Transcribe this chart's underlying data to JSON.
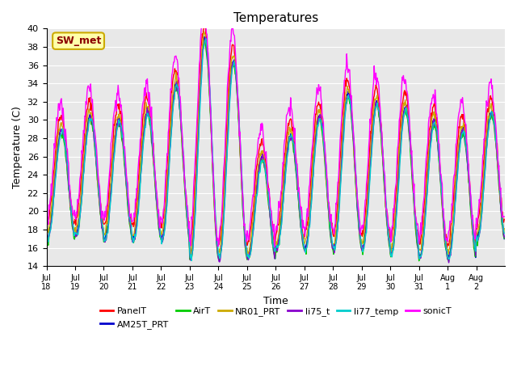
{
  "title": "Temperatures",
  "xlabel": "Time",
  "ylabel": "Temperature (C)",
  "annotation": "SW_met",
  "ylim": [
    14,
    40
  ],
  "yticks": [
    14,
    16,
    18,
    20,
    22,
    24,
    26,
    28,
    30,
    32,
    34,
    36,
    38,
    40
  ],
  "bg_color": "#e8e8e8",
  "series_colors": {
    "PanelT": "#ff0000",
    "AM25T_PRT": "#0000cc",
    "AirT": "#00cc00",
    "NR01_PRT": "#ccaa00",
    "li75_t": "#8800cc",
    "li77_temp": "#00cccc",
    "sonicT": "#ff00ff"
  },
  "series_order": [
    "PanelT",
    "AM25T_PRT",
    "AirT",
    "NR01_PRT",
    "li75_t",
    "li77_temp",
    "sonicT"
  ],
  "x_tick_labels": [
    "Jul 18",
    "Jul 19",
    "Jul 20",
    "Jul 21",
    "Jul 22",
    "Jul 23",
    "Jul 24",
    "Jul 25",
    "Jul 26",
    "Jul 27",
    "Jul 28",
    "Jul 29",
    "Jul 30",
    "Jul 31",
    "Aug 1",
    "Aug 2"
  ],
  "n_days": 16,
  "points_per_day": 48,
  "day_peaks": [
    29,
    30.5,
    30,
    31,
    34,
    39,
    36.5,
    26,
    28.5,
    30.5,
    33,
    32,
    31.5,
    30,
    29,
    31
  ],
  "day_mins": [
    17,
    17.5,
    17,
    17,
    17,
    15,
    15,
    15,
    16,
    16,
    16,
    16,
    15.5,
    15,
    15,
    17
  ]
}
